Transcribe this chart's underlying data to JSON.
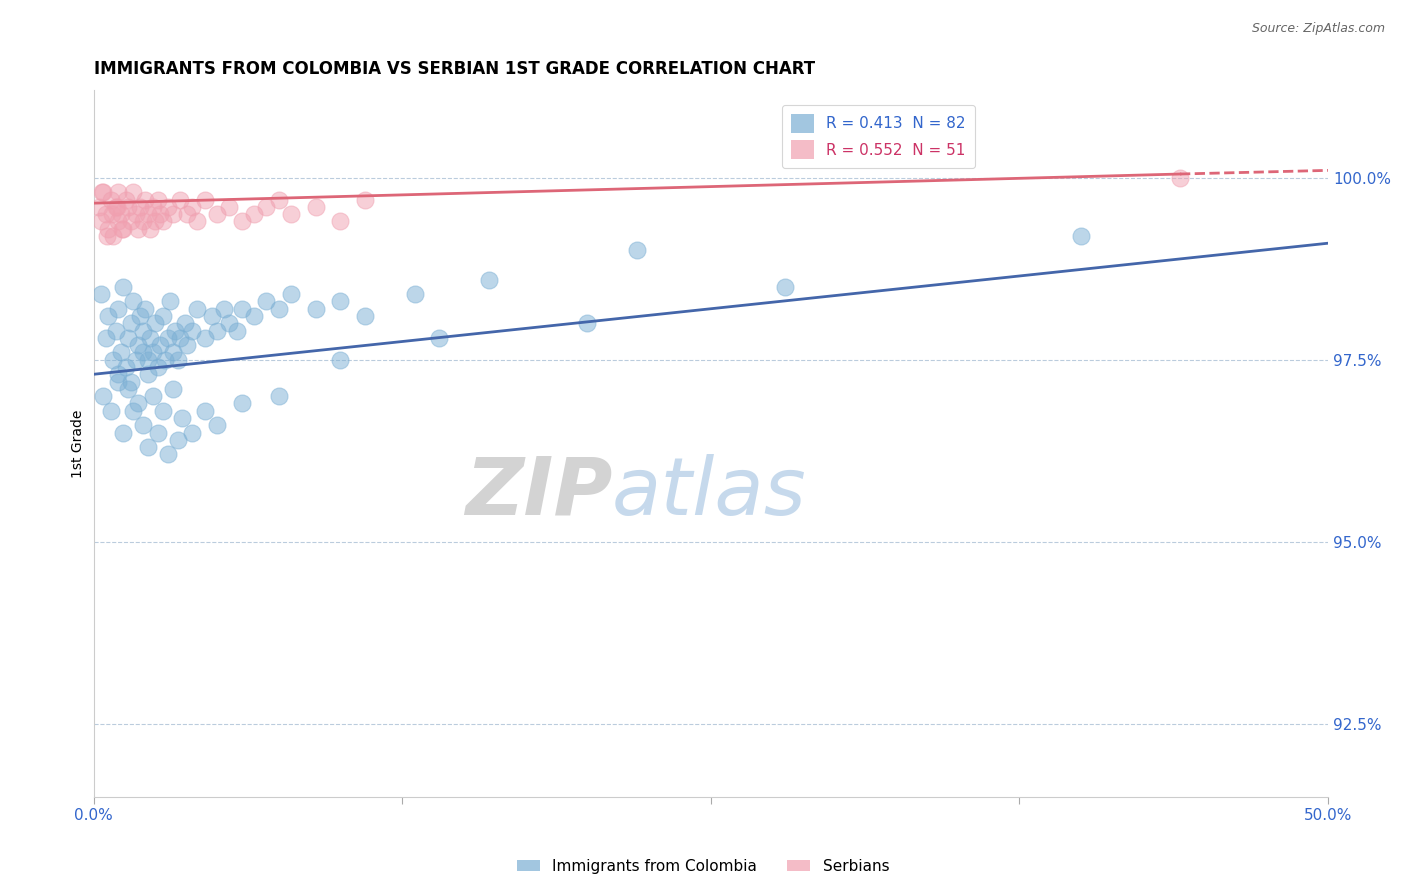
{
  "title": "IMMIGRANTS FROM COLOMBIA VS SERBIAN 1ST GRADE CORRELATION CHART",
  "source_text": "Source: ZipAtlas.com",
  "ylabel": "1st Grade",
  "xlim": [
    0.0,
    50.0
  ],
  "ylim": [
    91.5,
    101.2
  ],
  "yticks": [
    92.5,
    95.0,
    97.5,
    100.0
  ],
  "ytick_labels": [
    "92.5%",
    "95.0%",
    "97.5%",
    "100.0%"
  ],
  "legend_entries": [
    {
      "label": "R = 0.413  N = 82",
      "color": "#7bafd4"
    },
    {
      "label": "R = 0.552  N = 51",
      "color": "#f0a0b0"
    }
  ],
  "legend_marker_labels": [
    "Immigrants from Colombia",
    "Serbians"
  ],
  "watermark_zip": "ZIP",
  "watermark_atlas": "atlas",
  "blue_color": "#7bafd4",
  "pink_color": "#f0a0b0",
  "blue_line_color": "#4466aa",
  "pink_line_color": "#dd6677",
  "colombia_x": [
    0.3,
    0.5,
    0.6,
    0.8,
    0.9,
    1.0,
    1.0,
    1.1,
    1.2,
    1.3,
    1.4,
    1.5,
    1.5,
    1.6,
    1.7,
    1.8,
    1.9,
    2.0,
    2.0,
    2.1,
    2.2,
    2.2,
    2.3,
    2.4,
    2.5,
    2.6,
    2.7,
    2.8,
    2.9,
    3.0,
    3.1,
    3.2,
    3.3,
    3.4,
    3.5,
    3.7,
    3.8,
    4.0,
    4.2,
    4.5,
    4.8,
    5.0,
    5.3,
    5.5,
    5.8,
    6.0,
    6.5,
    7.0,
    7.5,
    8.0,
    9.0,
    10.0,
    11.0,
    13.0,
    16.0,
    22.0,
    0.4,
    0.7,
    1.0,
    1.2,
    1.4,
    1.6,
    1.8,
    2.0,
    2.2,
    2.4,
    2.6,
    2.8,
    3.0,
    3.2,
    3.4,
    3.6,
    4.0,
    4.5,
    5.0,
    6.0,
    7.5,
    10.0,
    14.0,
    20.0,
    28.0,
    40.0
  ],
  "colombia_y": [
    98.4,
    97.8,
    98.1,
    97.5,
    97.9,
    98.2,
    97.3,
    97.6,
    98.5,
    97.4,
    97.8,
    98.0,
    97.2,
    98.3,
    97.5,
    97.7,
    98.1,
    97.6,
    97.9,
    98.2,
    97.5,
    97.3,
    97.8,
    97.6,
    98.0,
    97.4,
    97.7,
    98.1,
    97.5,
    97.8,
    98.3,
    97.6,
    97.9,
    97.5,
    97.8,
    98.0,
    97.7,
    97.9,
    98.2,
    97.8,
    98.1,
    97.9,
    98.2,
    98.0,
    97.9,
    98.2,
    98.1,
    98.3,
    98.2,
    98.4,
    98.2,
    98.3,
    98.1,
    98.4,
    98.6,
    99.0,
    97.0,
    96.8,
    97.2,
    96.5,
    97.1,
    96.8,
    96.9,
    96.6,
    96.3,
    97.0,
    96.5,
    96.8,
    96.2,
    97.1,
    96.4,
    96.7,
    96.5,
    96.8,
    96.6,
    96.9,
    97.0,
    97.5,
    97.8,
    98.0,
    98.5,
    99.2
  ],
  "serbian_x": [
    0.2,
    0.3,
    0.4,
    0.5,
    0.6,
    0.7,
    0.8,
    0.9,
    1.0,
    1.0,
    1.1,
    1.2,
    1.3,
    1.4,
    1.5,
    1.6,
    1.7,
    1.8,
    1.9,
    2.0,
    2.1,
    2.2,
    2.3,
    2.4,
    2.5,
    2.6,
    2.7,
    2.8,
    3.0,
    3.2,
    3.5,
    3.8,
    4.0,
    4.2,
    4.5,
    5.0,
    5.5,
    6.0,
    6.5,
    7.0,
    7.5,
    8.0,
    9.0,
    10.0,
    11.0,
    0.35,
    0.55,
    0.75,
    0.95,
    1.15,
    44.0
  ],
  "serbian_y": [
    99.6,
    99.4,
    99.8,
    99.5,
    99.3,
    99.7,
    99.2,
    99.6,
    99.8,
    99.4,
    99.5,
    99.3,
    99.7,
    99.6,
    99.4,
    99.8,
    99.5,
    99.3,
    99.6,
    99.4,
    99.7,
    99.5,
    99.3,
    99.6,
    99.4,
    99.7,
    99.5,
    99.4,
    99.6,
    99.5,
    99.7,
    99.5,
    99.6,
    99.4,
    99.7,
    99.5,
    99.6,
    99.4,
    99.5,
    99.6,
    99.7,
    99.5,
    99.6,
    99.4,
    99.7,
    99.8,
    99.2,
    99.5,
    99.6,
    99.3,
    100.0
  ],
  "blue_line_x0": 0.0,
  "blue_line_y0": 97.3,
  "blue_line_x1": 50.0,
  "blue_line_y1": 99.1,
  "pink_line_x0": 0.0,
  "pink_line_y0": 99.65,
  "pink_line_x1": 44.0,
  "pink_line_y1": 100.05,
  "pink_dash_x0": 44.0,
  "pink_dash_y0": 100.05,
  "pink_dash_x1": 50.0,
  "pink_dash_y1": 100.1
}
